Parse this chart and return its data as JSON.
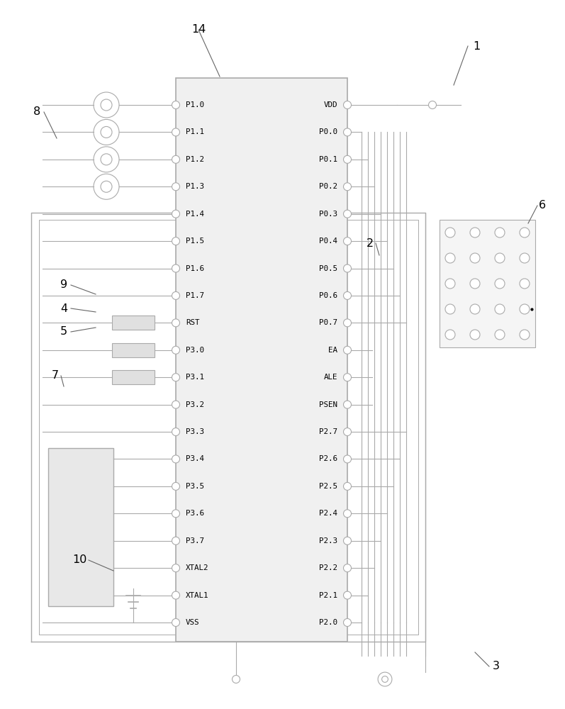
{
  "bg_color": "#ffffff",
  "lc": "#aaaaaa",
  "dc": "#666666",
  "tc": "#000000",
  "ic_left_pins": [
    "P1.0",
    "P1.1",
    "P1.2",
    "P1.3",
    "P1.4",
    "P1.5",
    "P1.6",
    "P1.7",
    "RST",
    "P3.0",
    "P3.1",
    "P3.2",
    "P3.3",
    "P3.4",
    "P3.5",
    "P3.6",
    "P3.7",
    "XTAL2",
    "XTAL1",
    "VSS"
  ],
  "ic_right_pins": [
    "VDD",
    "P0.0",
    "P0.1",
    "P0.2",
    "P0.3",
    "P0.4",
    "P0.5",
    "P0.6",
    "P0.7",
    "EA",
    "ALE",
    "PSEN",
    "P2.7",
    "P2.6",
    "P2.5",
    "P2.4",
    "P2.3",
    "P2.2",
    "P2.1",
    "P2.0"
  ]
}
